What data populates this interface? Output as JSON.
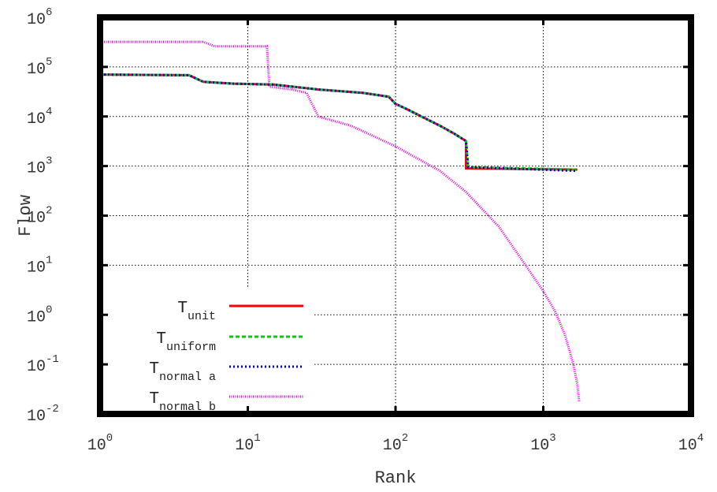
{
  "chart_data": {
    "type": "line",
    "xlabel": "Rank",
    "ylabel": "Flow",
    "xscale": "log",
    "yscale": "log",
    "xlim": [
      1,
      10000
    ],
    "ylim": [
      0.01,
      1000000
    ],
    "grid": true,
    "legend_position": "bottom-left",
    "x_ticks": [
      {
        "value": 1,
        "base": "10",
        "exp": "0"
      },
      {
        "value": 10,
        "base": "10",
        "exp": "1"
      },
      {
        "value": 100,
        "base": "10",
        "exp": "2"
      },
      {
        "value": 1000,
        "base": "10",
        "exp": "3"
      },
      {
        "value": 10000,
        "base": "10",
        "exp": "4"
      }
    ],
    "y_ticks": [
      {
        "value": 0.01,
        "base": "10",
        "exp": "-2"
      },
      {
        "value": 0.1,
        "base": "10",
        "exp": "-1"
      },
      {
        "value": 1,
        "base": "10",
        "exp": "0"
      },
      {
        "value": 10,
        "base": "10",
        "exp": "1"
      },
      {
        "value": 100,
        "base": "10",
        "exp": "2"
      },
      {
        "value": 1000,
        "base": "10",
        "exp": "3"
      },
      {
        "value": 10000,
        "base": "10",
        "exp": "4"
      },
      {
        "value": 100000,
        "base": "10",
        "exp": "5"
      },
      {
        "value": 1000000,
        "base": "10",
        "exp": "6"
      }
    ],
    "series": [
      {
        "name": "Tunit",
        "label_main": "T",
        "label_sub": "unit",
        "color": "#ff0000",
        "dash": "none",
        "x": [
          1,
          4,
          5,
          8,
          15,
          20,
          30,
          60,
          90,
          100,
          120,
          150,
          200,
          250,
          300,
          300,
          1700
        ],
        "y": [
          70000,
          68000,
          50000,
          46000,
          44000,
          40000,
          35000,
          30000,
          25000,
          18000,
          14000,
          10000,
          6500,
          4500,
          3200,
          900,
          850
        ]
      },
      {
        "name": "Tuniform",
        "label_main": "T",
        "label_sub": "uniform",
        "color": "#00cc00",
        "dash": "5 3",
        "x": [
          1,
          4,
          5,
          8,
          15,
          20,
          30,
          60,
          90,
          100,
          120,
          150,
          200,
          250,
          300,
          310,
          1700
        ],
        "y": [
          70000,
          68000,
          50000,
          46000,
          44000,
          40000,
          35000,
          30000,
          25000,
          18000,
          14000,
          10000,
          6500,
          4500,
          3200,
          950,
          850
        ]
      },
      {
        "name": "Tnormal a",
        "label_main": "T",
        "label_sub": "normal a",
        "color": "#0000ee",
        "dash": "2 3",
        "x": [
          1,
          4,
          5,
          8,
          15,
          20,
          30,
          60,
          90,
          100,
          120,
          150,
          200,
          250,
          300,
          310,
          1700
        ],
        "y": [
          70000,
          68000,
          50000,
          46000,
          44000,
          40000,
          35000,
          30000,
          25000,
          18000,
          14000,
          10000,
          6500,
          4500,
          3200,
          950,
          800
        ]
      },
      {
        "name": "Tnormal b",
        "label_main": "T",
        "label_sub": "normal b",
        "color": "#ee00ee",
        "dash": "1 1.5",
        "x": [
          1,
          5,
          6,
          13.5,
          14,
          20,
          25,
          30,
          50,
          100,
          200,
          300,
          500,
          800,
          1000,
          1200,
          1400,
          1600,
          1700,
          1750
        ],
        "y": [
          320000,
          320000,
          260000,
          260000,
          40000,
          35000,
          30000,
          10000,
          6500,
          2500,
          800,
          300,
          60,
          8,
          3,
          1.2,
          0.4,
          0.1,
          0.04,
          0.018
        ]
      }
    ]
  }
}
